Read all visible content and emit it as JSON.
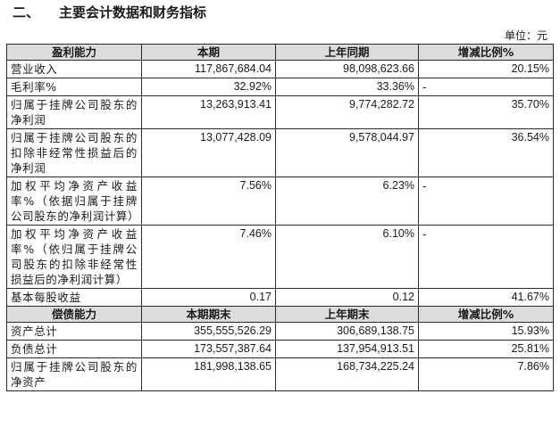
{
  "section": {
    "number": "二、",
    "title": "主要会计数据和财务指标"
  },
  "unit_label": "单位：元",
  "profitability": {
    "headers": [
      "盈利能力",
      "本期",
      "上年同期",
      "增减比例%"
    ],
    "rows": [
      {
        "label": "营业收入",
        "current": "117,867,684.04",
        "prior": "98,098,623.66",
        "change": "20.15%"
      },
      {
        "label": "毛利率%",
        "current": "32.92%",
        "prior": "33.36%",
        "change": "-"
      },
      {
        "label": "归属于挂牌公司股东的净利润",
        "current": "13,263,913.41",
        "prior": "9,774,282.72",
        "change": "35.70%"
      },
      {
        "label": "归属于挂牌公司股东的扣除非经常性损益后的净利润",
        "current": "13,077,428.09",
        "prior": "9,578,044.97",
        "change": "36.54%"
      },
      {
        "label": "加权平均净资产收益率%（依据归属于挂牌公司股东的净利润计算）",
        "current": "7.56%",
        "prior": "6.23%",
        "change": "-"
      },
      {
        "label": "加权平均净资产收益率%（依归属于挂牌公司股东的扣除非经常性损益后的净利润计算）",
        "current": "7.46%",
        "prior": "6.10%",
        "change": "-"
      },
      {
        "label": "基本每股收益",
        "current": "0.17",
        "prior": "0.12",
        "change": "41.67%"
      }
    ]
  },
  "solvency": {
    "headers": [
      "偿债能力",
      "本期期末",
      "上年期末",
      "增减比例%"
    ],
    "rows": [
      {
        "label": "资产总计",
        "current": "355,555,526.29",
        "prior": "306,689,138.75",
        "change": "15.93%"
      },
      {
        "label": "负债总计",
        "current": "173,557,387.64",
        "prior": "137,954,913.51",
        "change": "25.81%"
      },
      {
        "label": "归属于挂牌公司股东的净资产",
        "current": "181,998,138.65",
        "prior": "168,734,225.24",
        "change": "7.86%"
      }
    ]
  }
}
